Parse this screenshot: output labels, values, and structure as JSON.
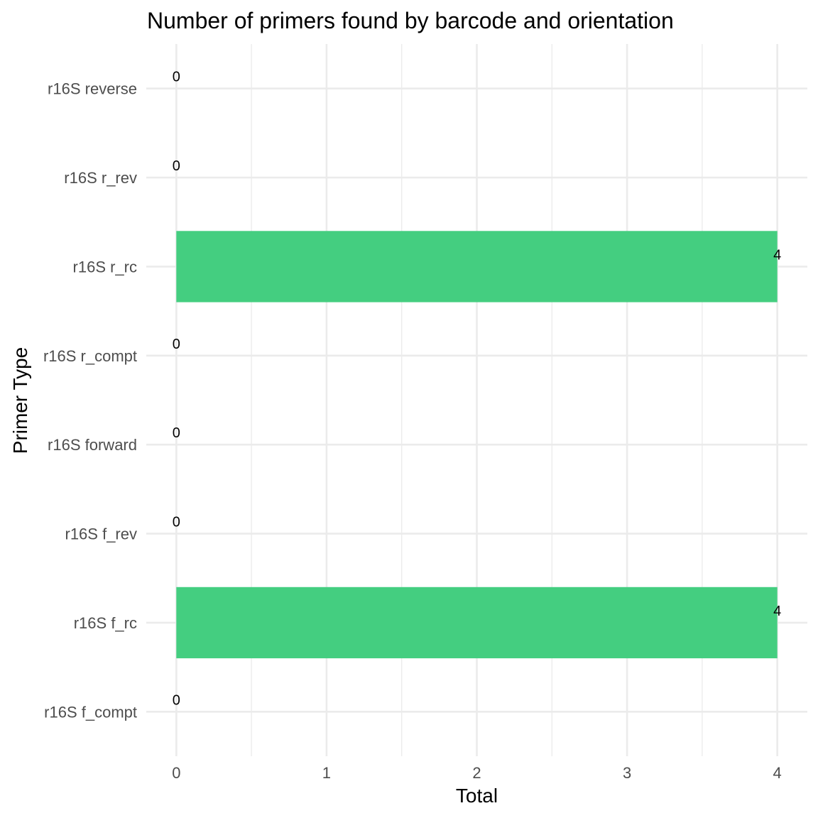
{
  "chart_data": {
    "type": "bar",
    "orientation": "horizontal",
    "title": "Number of primers found by barcode and orientation",
    "xlabel": "Total",
    "ylabel": "Primer Type",
    "categories": [
      "r16S f_compt",
      "r16S f_rc",
      "r16S f_rev",
      "r16S forward",
      "r16S r_compt",
      "r16S r_rc",
      "r16S r_rev",
      "r16S reverse"
    ],
    "values": [
      0,
      4,
      0,
      0,
      0,
      4,
      0,
      0
    ],
    "data_labels": [
      "0",
      "4",
      "0",
      "0",
      "0",
      "4",
      "0",
      "0"
    ],
    "xlim": [
      -0.2,
      4.2
    ],
    "xticks": [
      0,
      1,
      2,
      3,
      4
    ],
    "xtick_labels": [
      "0",
      "1",
      "2",
      "3",
      "4"
    ],
    "grid": true,
    "bar_color": "#44CE80",
    "legend": "none"
  }
}
